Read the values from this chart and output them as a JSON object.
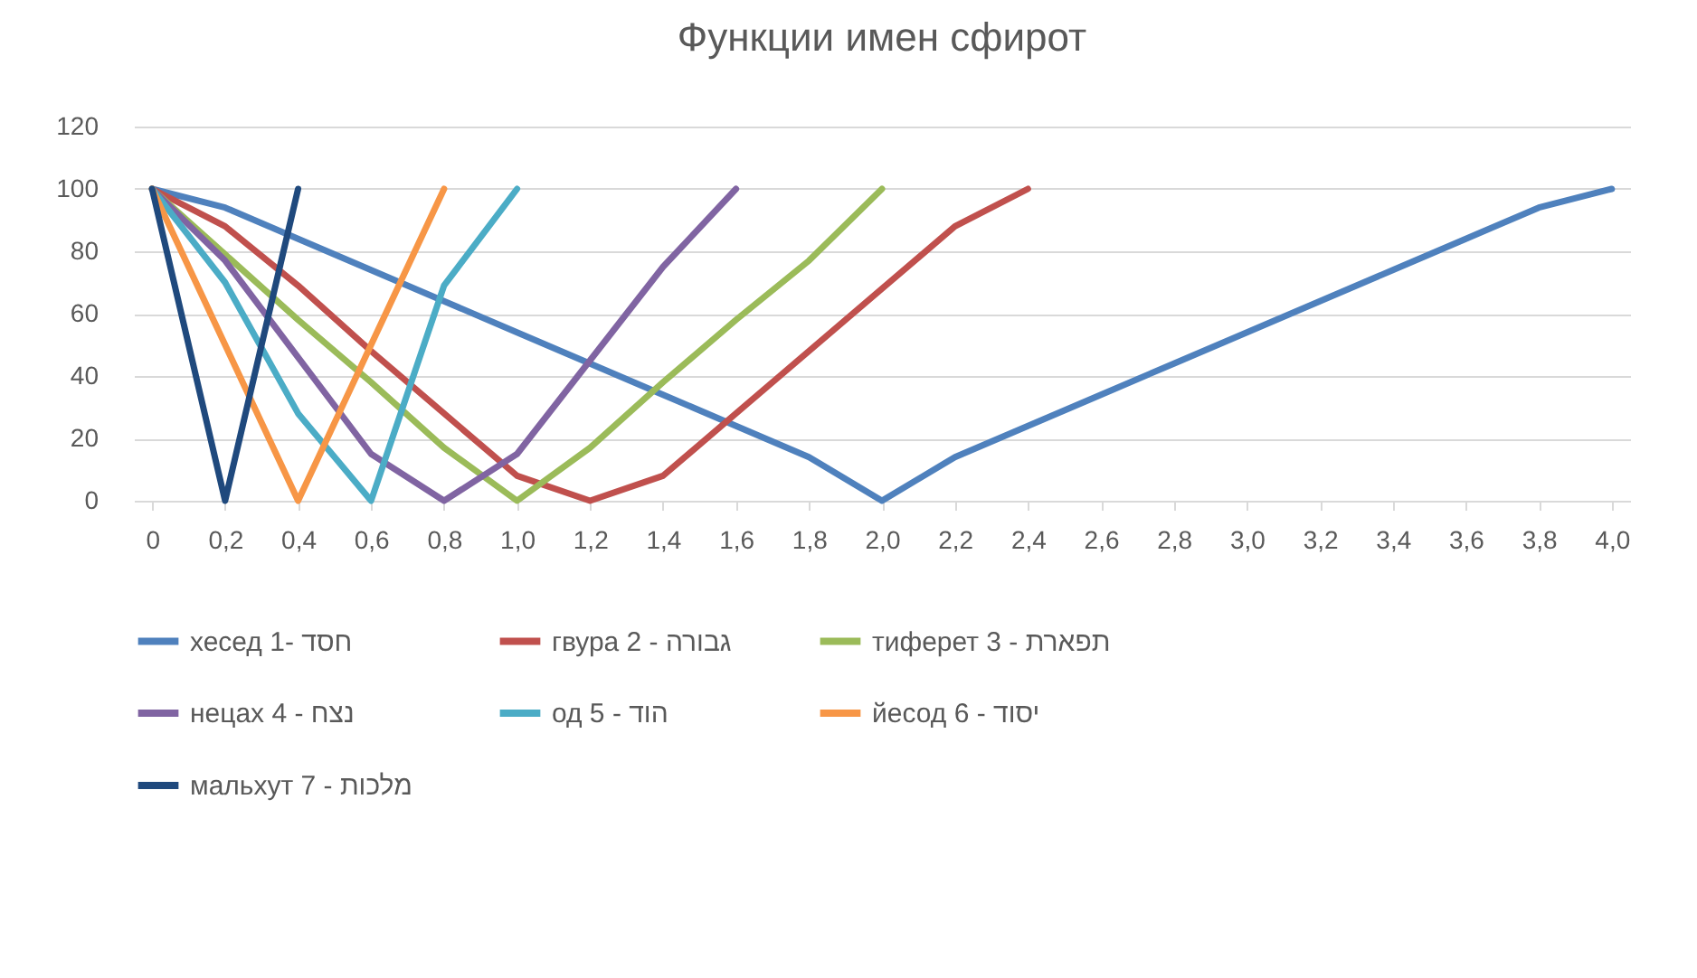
{
  "chart_data": {
    "type": "line",
    "title": "Функции имен сфирот",
    "categories": [
      "0",
      "0,2",
      "0,4",
      "0,6",
      "0,8",
      "1,0",
      "1,2",
      "1,4",
      "1,6",
      "1,8",
      "2,0",
      "2,2",
      "2,4",
      "2,6",
      "2,8",
      "3,0",
      "3,2",
      "3,4",
      "3,6",
      "3,8",
      "4,0"
    ],
    "ylim": [
      0,
      120
    ],
    "yticks": [
      0,
      20,
      40,
      60,
      80,
      100,
      120
    ],
    "grid": "y",
    "legend": "bottom",
    "marker": "none",
    "line_style": "solid",
    "series": [
      {
        "name": "хесед 1-   חסד",
        "color": "#4f81bd",
        "values": [
          100,
          94,
          84,
          74,
          64,
          54,
          44,
          34,
          24,
          14,
          0,
          14,
          24,
          34,
          44,
          54,
          64,
          74,
          84,
          94,
          100
        ]
      },
      {
        "name": "гвура 2 - גבורה",
        "color": "#c0504d",
        "values": [
          100,
          88,
          69,
          48,
          28,
          8,
          0,
          8,
          28,
          48,
          68,
          88,
          100,
          null,
          null,
          null,
          null,
          null,
          null,
          null,
          null
        ]
      },
      {
        "name": "тиферет 3 - תפארת",
        "color": "#9bbb59",
        "values": [
          100,
          79,
          58,
          38,
          17,
          0,
          17,
          38,
          58,
          77,
          100,
          null,
          null,
          null,
          null,
          null,
          null,
          null,
          null,
          null,
          null
        ]
      },
      {
        "name": "нецах 4 - נצח",
        "color": "#8064a2",
        "values": [
          100,
          77,
          46,
          15,
          0,
          15,
          45,
          75,
          100,
          null,
          null,
          null,
          null,
          null,
          null,
          null,
          null,
          null,
          null,
          null,
          null
        ]
      },
      {
        "name": "од 5 - הוד",
        "color": "#4bacc6",
        "values": [
          100,
          70,
          28,
          0,
          69,
          100,
          null,
          null,
          null,
          null,
          null,
          null,
          null,
          null,
          null,
          null,
          null,
          null,
          null,
          null,
          null
        ]
      },
      {
        "name": "йесод 6 - יסוד",
        "color": "#f79646",
        "values": [
          100,
          50,
          0,
          50,
          100,
          null,
          null,
          null,
          null,
          null,
          null,
          null,
          null,
          null,
          null,
          null,
          null,
          null,
          null,
          null,
          null
        ]
      },
      {
        "name": "мальхут 7 - מלכות",
        "color": "#1f497d",
        "values": [
          100,
          0,
          100,
          null,
          null,
          null,
          null,
          null,
          null,
          null,
          null,
          null,
          null,
          null,
          null,
          null,
          null,
          null,
          null,
          null,
          null
        ]
      }
    ]
  }
}
